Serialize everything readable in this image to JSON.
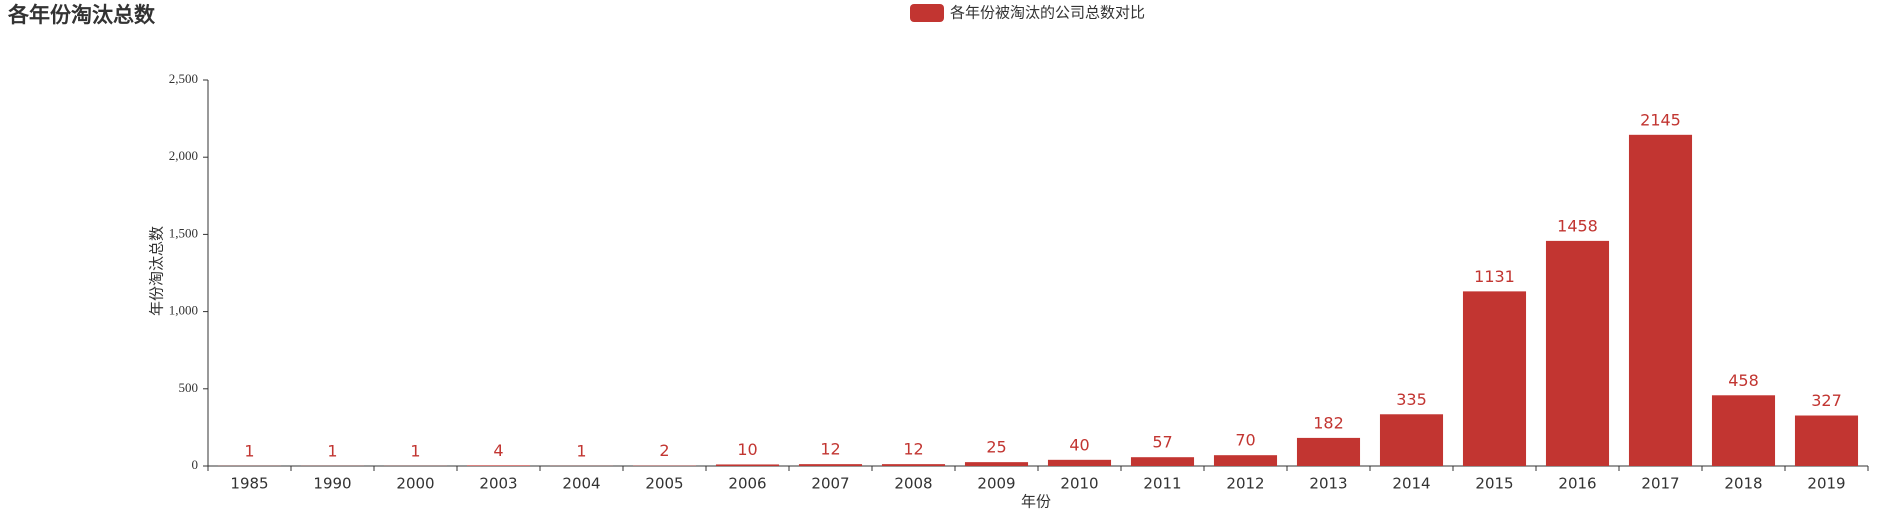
{
  "chart_data": {
    "type": "bar",
    "title": "各年份淘汰总数",
    "x_label": "年份",
    "y_label": "年份淘汰总数",
    "categories": [
      "1985",
      "1990",
      "2000",
      "2003",
      "2004",
      "2005",
      "2006",
      "2007",
      "2008",
      "2009",
      "2010",
      "2011",
      "2012",
      "2013",
      "2014",
      "2015",
      "2016",
      "2017",
      "2018",
      "2019"
    ],
    "series": [
      {
        "name": "各年份被淘汰的公司总数对比",
        "color": "#c23531",
        "values": [
          1,
          1,
          1,
          4,
          1,
          2,
          10,
          12,
          12,
          25,
          40,
          57,
          70,
          182,
          335,
          1131,
          1458,
          2145,
          458,
          327
        ]
      }
    ],
    "ylim": [
      0,
      2500
    ],
    "yticks": [
      0,
      500,
      {
        "value": 1000,
        "label": "1,000"
      },
      {
        "value": 1500,
        "label": "1,500"
      },
      {
        "value": 2000,
        "label": "2,000"
      },
      {
        "value": 2500,
        "label": "2,500"
      }
    ]
  }
}
